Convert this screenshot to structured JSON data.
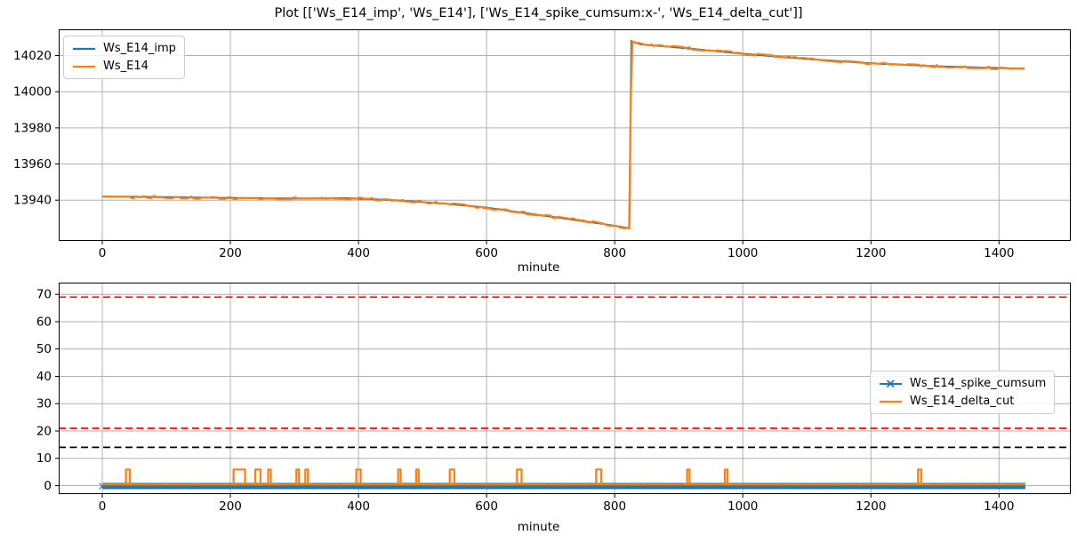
{
  "figure": {
    "title": "Plot [['Ws_E14_imp', 'Ws_E14'], ['Ws_E14_spike_cumsum:x-', 'Ws_E14_delta_cut']]"
  },
  "colors": {
    "blue": "#1f77b4",
    "orange": "#ff7f0e",
    "red": "#ff0000",
    "black": "#000000",
    "grid": "#b0b0b0",
    "spine": "#000000"
  },
  "chart_data": [
    {
      "type": "line",
      "title": "",
      "xlabel": "minute",
      "ylabel": "",
      "xlim": [
        -68,
        1512
      ],
      "ylim": [
        13917.5,
        14034.5
      ],
      "xticks": [
        0,
        200,
        400,
        600,
        800,
        1000,
        1200,
        1400
      ],
      "yticks": [
        13940,
        13960,
        13980,
        14000,
        14020
      ],
      "grid": true,
      "legend": {
        "loc": "upper left",
        "entries": [
          {
            "label": "Ws_E14_imp",
            "color": "#1f77b4",
            "marker": null
          },
          {
            "label": "Ws_E14",
            "color": "#ff7f0e",
            "marker": null
          }
        ]
      },
      "series": [
        {
          "name": "Ws_E14_imp",
          "color": "#1f77b4",
          "noise": 0,
          "width": 2,
          "points": [
            [
              0,
              13942
            ],
            [
              100,
              13941.7
            ],
            [
              200,
              13941.2
            ],
            [
              300,
              13940.9
            ],
            [
              380,
              13941.1
            ],
            [
              440,
              13940.2
            ],
            [
              490,
              13939.2
            ],
            [
              540,
              13937.9
            ],
            [
              600,
              13935.9
            ],
            [
              660,
              13932.9
            ],
            [
              720,
              13929.9
            ],
            [
              780,
              13927.0
            ],
            [
              823,
              13924.5
            ],
            [
              826,
              14028.0
            ],
            [
              840,
              14026.2
            ],
            [
              900,
              14024.4
            ],
            [
              1000,
              14021.0
            ],
            [
              1100,
              14018.1
            ],
            [
              1200,
              14015.7
            ],
            [
              1300,
              14014.1
            ],
            [
              1380,
              14013.3
            ],
            [
              1440,
              14012.7
            ]
          ]
        },
        {
          "name": "Ws_E14",
          "color": "#ff7f0e",
          "noise": 0.65,
          "width": 2.2,
          "points": [
            [
              0,
              13942
            ],
            [
              100,
              13941.7
            ],
            [
              200,
              13941.2
            ],
            [
              300,
              13940.9
            ],
            [
              380,
              13941.1
            ],
            [
              440,
              13940.2
            ],
            [
              490,
              13939.2
            ],
            [
              540,
              13937.9
            ],
            [
              600,
              13935.9
            ],
            [
              660,
              13932.9
            ],
            [
              720,
              13929.9
            ],
            [
              780,
              13927.0
            ],
            [
              823,
              13924.5
            ],
            [
              826,
              14028.0
            ],
            [
              840,
              14026.2
            ],
            [
              900,
              14024.4
            ],
            [
              1000,
              14021.0
            ],
            [
              1100,
              14018.1
            ],
            [
              1200,
              14015.7
            ],
            [
              1300,
              14014.1
            ],
            [
              1380,
              14013.3
            ],
            [
              1440,
              14012.7
            ]
          ]
        }
      ]
    },
    {
      "type": "line",
      "title": "",
      "xlabel": "minute",
      "ylabel": "",
      "xlim": [
        -68,
        1512
      ],
      "ylim": [
        -3.1,
        74.3
      ],
      "xticks": [
        0,
        200,
        400,
        600,
        800,
        1000,
        1200,
        1400
      ],
      "yticks": [
        0,
        10,
        20,
        30,
        40,
        50,
        60,
        70
      ],
      "grid": true,
      "hlines": [
        {
          "y": 69,
          "color": "#ff0000",
          "style": "dashed"
        },
        {
          "y": 21,
          "color": "#ff0000",
          "style": "dashed"
        },
        {
          "y": 14,
          "color": "#000000",
          "style": "dashed"
        }
      ],
      "legend": {
        "loc": "center right",
        "entries": [
          {
            "label": "Ws_E14_spike_cumsum",
            "color": "#1f77b4",
            "marker": "x"
          },
          {
            "label": "Ws_E14_delta_cut",
            "color": "#ff7f0e",
            "marker": null
          }
        ]
      },
      "series": [
        {
          "name": "Ws_E14_spike_cumsum",
          "color": "#1f77b4",
          "render": "band",
          "marker": "x",
          "y": 0,
          "x_start": 0,
          "x_end": 1441
        },
        {
          "name": "Ws_E14_delta_cut",
          "color": "#ff7f0e",
          "render": "spikes",
          "baseline": 0.4,
          "x_start": 0,
          "x_end": 1441,
          "spike_height": 5.5,
          "spikes": [
            {
              "x": 40,
              "w": 6
            },
            {
              "x": 214,
              "w": 18
            },
            {
              "x": 243,
              "w": 8
            },
            {
              "x": 261,
              "w": 4
            },
            {
              "x": 305,
              "w": 4
            },
            {
              "x": 319,
              "w": 4
            },
            {
              "x": 400,
              "w": 7
            },
            {
              "x": 464,
              "w": 4
            },
            {
              "x": 492,
              "w": 4
            },
            {
              "x": 546,
              "w": 7
            },
            {
              "x": 651,
              "w": 7
            },
            {
              "x": 775,
              "w": 8
            },
            {
              "x": 915,
              "w": 4
            },
            {
              "x": 974,
              "w": 4
            },
            {
              "x": 1276,
              "w": 5
            }
          ]
        }
      ]
    }
  ]
}
